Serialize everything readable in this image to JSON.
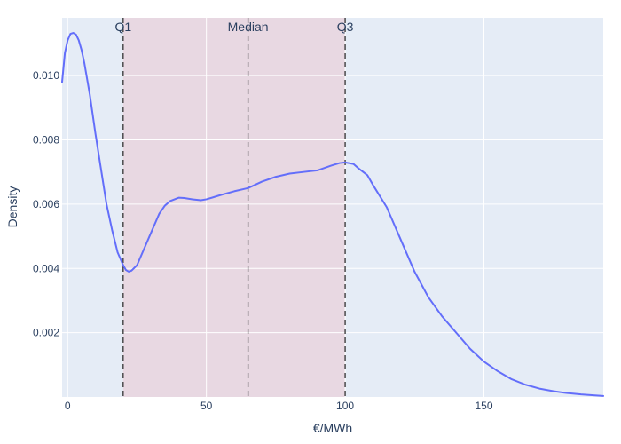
{
  "chart_data": {
    "type": "line",
    "title": "",
    "xlabel": "€/MWh",
    "ylabel": "Density",
    "xlim": [
      -2,
      193
    ],
    "ylim": [
      0,
      0.0118
    ],
    "x_ticks": [
      0,
      50,
      100,
      150
    ],
    "x_tick_labels": [
      "0",
      "50",
      "100",
      "150"
    ],
    "y_ticks": [
      0.002,
      0.004,
      0.006,
      0.008,
      0.01
    ],
    "y_tick_labels": [
      "0.002",
      "0.004",
      "0.006",
      "0.008",
      "0.010"
    ],
    "grid": true,
    "colors": {
      "plot_bg": "#e5ecf6",
      "grid": "#ffffff",
      "line": "#636efa",
      "iqr_band": "#e8d8e2",
      "vline": "#333333",
      "text": "#2a3f5f"
    },
    "shaded_region": {
      "x0": 20,
      "x1": 100
    },
    "vlines": [
      {
        "x": 20,
        "label": "Q1"
      },
      {
        "x": 65,
        "label": "Median"
      },
      {
        "x": 100,
        "label": "Q3"
      }
    ],
    "series": [
      {
        "x": [
          -2,
          -1,
          0,
          1,
          2,
          3,
          4,
          5,
          6,
          8,
          10,
          12,
          14,
          16,
          18,
          20,
          21,
          22,
          23,
          25,
          27,
          30,
          33,
          35,
          37,
          40,
          42,
          45,
          48,
          50,
          52,
          55,
          60,
          65,
          70,
          75,
          80,
          85,
          90,
          95,
          98,
          100,
          103,
          105,
          108,
          110,
          115,
          120,
          125,
          130,
          135,
          140,
          145,
          150,
          155,
          160,
          165,
          170,
          175,
          180,
          185,
          190,
          193
        ],
        "y": [
          0.0098,
          0.0107,
          0.0111,
          0.0113,
          0.01133,
          0.01128,
          0.0111,
          0.0108,
          0.0104,
          0.0094,
          0.0082,
          0.0071,
          0.006,
          0.0052,
          0.0045,
          0.0041,
          0.00395,
          0.0039,
          0.00393,
          0.0041,
          0.0045,
          0.0051,
          0.0057,
          0.00595,
          0.0061,
          0.0062,
          0.00619,
          0.00615,
          0.00612,
          0.00615,
          0.0062,
          0.00628,
          0.0064,
          0.0065,
          0.0067,
          0.00685,
          0.00695,
          0.007,
          0.00705,
          0.0072,
          0.00728,
          0.0073,
          0.00725,
          0.0071,
          0.0069,
          0.0066,
          0.0059,
          0.0049,
          0.0039,
          0.0031,
          0.0025,
          0.002,
          0.0015,
          0.0011,
          0.0008,
          0.00055,
          0.00038,
          0.00026,
          0.00018,
          0.00012,
          8e-05,
          5e-05,
          3e-05
        ]
      }
    ]
  }
}
